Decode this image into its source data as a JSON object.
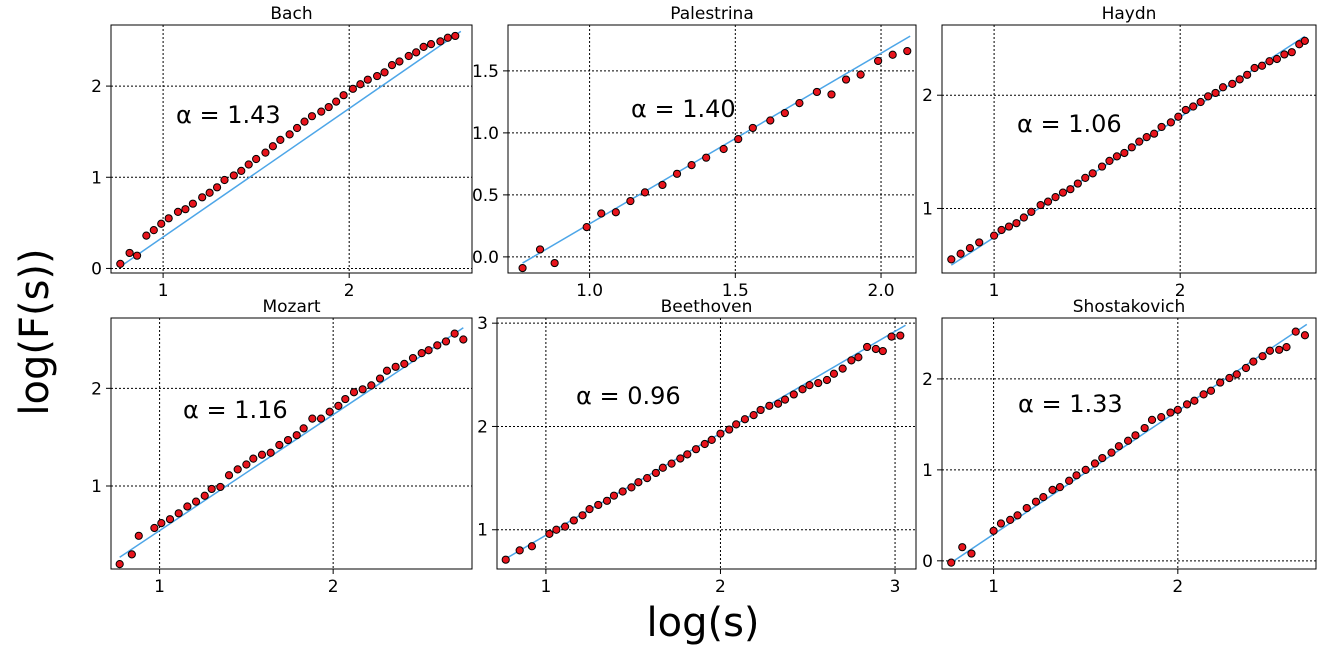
{
  "figure": {
    "xlabel": "log(s)",
    "ylabel": "log(F(s))"
  },
  "colors": {
    "marker_fill": "#e8141c",
    "marker_edge": "#000000",
    "fit_line": "#4da6e8",
    "grid": "#000000"
  },
  "chart_data": [
    {
      "type": "scatter",
      "title": "Bach",
      "annotation": "α = 1.43",
      "xlim": [
        0.72,
        2.66
      ],
      "ylim": [
        -0.05,
        2.67
      ],
      "xticks": [
        1,
        2
      ],
      "yticks": [
        0,
        1,
        2
      ],
      "xtick_labels": [
        "1",
        "2"
      ],
      "ytick_labels": [
        "0",
        "1",
        "2"
      ],
      "grid": true,
      "fit": {
        "x": [
          0.77,
          2.6
        ],
        "y": [
          0.02,
          2.6
        ]
      },
      "x": [
        0.77,
        0.82,
        0.86,
        0.91,
        0.95,
        0.99,
        1.03,
        1.08,
        1.12,
        1.16,
        1.21,
        1.25,
        1.29,
        1.33,
        1.38,
        1.42,
        1.46,
        1.5,
        1.55,
        1.59,
        1.63,
        1.68,
        1.72,
        1.76,
        1.8,
        1.85,
        1.89,
        1.93,
        1.97,
        2.02,
        2.06,
        2.1,
        2.15,
        2.19,
        2.23,
        2.27,
        2.32,
        2.36,
        2.4,
        2.44,
        2.49,
        2.53,
        2.57
      ],
      "y": [
        0.05,
        0.17,
        0.14,
        0.36,
        0.42,
        0.49,
        0.55,
        0.62,
        0.65,
        0.71,
        0.78,
        0.83,
        0.89,
        0.97,
        1.02,
        1.07,
        1.14,
        1.2,
        1.27,
        1.34,
        1.41,
        1.47,
        1.54,
        1.61,
        1.67,
        1.72,
        1.77,
        1.83,
        1.9,
        1.97,
        2.02,
        2.07,
        2.11,
        2.15,
        2.23,
        2.27,
        2.33,
        2.37,
        2.43,
        2.46,
        2.49,
        2.53,
        2.55
      ]
    },
    {
      "type": "scatter",
      "title": "Palestrina",
      "annotation": "α = 1.40",
      "xlim": [
        0.72,
        2.12
      ],
      "ylim": [
        -0.13,
        1.87
      ],
      "xticks": [
        1.0,
        1.5,
        2.0
      ],
      "yticks": [
        0.0,
        0.5,
        1.0,
        1.5
      ],
      "xtick_labels": [
        "1.0",
        "1.5",
        "2.0"
      ],
      "ytick_labels": [
        "0.0",
        "0.5",
        "1.0",
        "1.5"
      ],
      "grid": true,
      "fit": {
        "x": [
          0.77,
          2.1
        ],
        "y": [
          -0.05,
          1.78
        ]
      },
      "x": [
        0.77,
        0.83,
        0.88,
        0.99,
        1.04,
        1.09,
        1.14,
        1.19,
        1.25,
        1.3,
        1.35,
        1.4,
        1.46,
        1.51,
        1.56,
        1.62,
        1.67,
        1.72,
        1.78,
        1.83,
        1.88,
        1.93,
        1.99,
        2.04,
        2.09
      ],
      "y": [
        -0.09,
        0.06,
        -0.05,
        0.24,
        0.35,
        0.36,
        0.45,
        0.52,
        0.58,
        0.67,
        0.74,
        0.8,
        0.87,
        0.95,
        1.04,
        1.1,
        1.16,
        1.24,
        1.33,
        1.31,
        1.43,
        1.47,
        1.58,
        1.63,
        1.66
      ]
    },
    {
      "type": "scatter",
      "title": "Haydn",
      "annotation": "α = 1.06",
      "xlim": [
        0.72,
        2.73
      ],
      "ylim": [
        0.43,
        2.62
      ],
      "xticks": [
        1,
        2
      ],
      "yticks": [
        1,
        2
      ],
      "xtick_labels": [
        "1",
        "2"
      ],
      "ytick_labels": [
        "1",
        "2"
      ],
      "grid": true,
      "fit": {
        "x": [
          0.77,
          2.67
        ],
        "y": [
          0.5,
          2.52
        ]
      },
      "x": [
        0.77,
        0.82,
        0.87,
        0.92,
        1.0,
        1.04,
        1.08,
        1.12,
        1.16,
        1.2,
        1.25,
        1.29,
        1.33,
        1.37,
        1.41,
        1.45,
        1.49,
        1.53,
        1.58,
        1.62,
        1.66,
        1.7,
        1.74,
        1.78,
        1.82,
        1.86,
        1.9,
        1.95,
        1.99,
        2.03,
        2.07,
        2.11,
        2.15,
        2.19,
        2.23,
        2.28,
        2.32,
        2.36,
        2.4,
        2.44,
        2.48,
        2.52,
        2.56,
        2.6,
        2.64,
        2.67
      ],
      "y": [
        0.55,
        0.6,
        0.65,
        0.7,
        0.76,
        0.81,
        0.84,
        0.87,
        0.92,
        0.97,
        1.03,
        1.06,
        1.1,
        1.14,
        1.17,
        1.22,
        1.27,
        1.31,
        1.37,
        1.42,
        1.46,
        1.49,
        1.54,
        1.59,
        1.63,
        1.66,
        1.72,
        1.76,
        1.81,
        1.87,
        1.9,
        1.94,
        1.99,
        2.02,
        2.07,
        2.1,
        2.14,
        2.18,
        2.24,
        2.26,
        2.3,
        2.32,
        2.36,
        2.38,
        2.45,
        2.48
      ]
    },
    {
      "type": "scatter",
      "title": "Mozart",
      "annotation": "α = 1.16",
      "xlim": [
        0.72,
        2.8
      ],
      "ylim": [
        0.15,
        2.72
      ],
      "xticks": [
        1,
        2
      ],
      "yticks": [
        1,
        2
      ],
      "xtick_labels": [
        "1",
        "2"
      ],
      "ytick_labels": [
        "1",
        "2"
      ],
      "grid": true,
      "fit": {
        "x": [
          0.77,
          2.75
        ],
        "y": [
          0.27,
          2.62
        ]
      },
      "x": [
        0.77,
        0.84,
        0.88,
        0.97,
        1.01,
        1.06,
        1.11,
        1.16,
        1.21,
        1.26,
        1.3,
        1.35,
        1.4,
        1.45,
        1.5,
        1.54,
        1.59,
        1.64,
        1.69,
        1.74,
        1.79,
        1.83,
        1.88,
        1.93,
        1.98,
        2.03,
        2.07,
        2.12,
        2.17,
        2.22,
        2.27,
        2.31,
        2.36,
        2.41,
        2.46,
        2.51,
        2.55,
        2.6,
        2.65,
        2.7,
        2.75
      ],
      "y": [
        0.2,
        0.3,
        0.49,
        0.57,
        0.62,
        0.66,
        0.72,
        0.79,
        0.84,
        0.9,
        0.97,
        0.99,
        1.11,
        1.17,
        1.22,
        1.28,
        1.32,
        1.34,
        1.42,
        1.47,
        1.52,
        1.59,
        1.69,
        1.69,
        1.76,
        1.82,
        1.89,
        1.96,
        1.99,
        2.03,
        2.1,
        2.18,
        2.22,
        2.25,
        2.31,
        2.36,
        2.39,
        2.44,
        2.48,
        2.56,
        2.5
      ]
    },
    {
      "type": "scatter",
      "title": "Beethoven",
      "annotation": "α = 0.96",
      "xlim": [
        0.72,
        3.12
      ],
      "ylim": [
        0.62,
        3.05
      ],
      "xticks": [
        1,
        2,
        3
      ],
      "yticks": [
        1,
        2,
        3
      ],
      "xtick_labels": [
        "1",
        "2",
        "3"
      ],
      "ytick_labels": [
        "1",
        "2",
        "3"
      ],
      "grid": true,
      "fit": {
        "x": [
          0.77,
          3.06
        ],
        "y": [
          0.72,
          2.98
        ]
      },
      "x": [
        0.77,
        0.85,
        0.92,
        1.02,
        1.06,
        1.11,
        1.16,
        1.21,
        1.25,
        1.3,
        1.35,
        1.39,
        1.44,
        1.49,
        1.53,
        1.58,
        1.63,
        1.67,
        1.72,
        1.77,
        1.81,
        1.86,
        1.91,
        1.95,
        2.0,
        2.05,
        2.09,
        2.14,
        2.19,
        2.23,
        2.28,
        2.33,
        2.37,
        2.42,
        2.47,
        2.51,
        2.56,
        2.61,
        2.65,
        2.7,
        2.75,
        2.79,
        2.84,
        2.89,
        2.93,
        2.98,
        3.03
      ],
      "y": [
        0.71,
        0.8,
        0.84,
        0.96,
        1.0,
        1.03,
        1.09,
        1.14,
        1.2,
        1.24,
        1.28,
        1.33,
        1.37,
        1.41,
        1.46,
        1.5,
        1.55,
        1.6,
        1.64,
        1.69,
        1.73,
        1.78,
        1.83,
        1.87,
        1.93,
        1.97,
        2.02,
        2.07,
        2.11,
        2.16,
        2.2,
        2.22,
        2.26,
        2.31,
        2.36,
        2.4,
        2.42,
        2.45,
        2.51,
        2.56,
        2.64,
        2.67,
        2.77,
        2.75,
        2.73,
        2.87,
        2.88
      ]
    },
    {
      "type": "scatter",
      "title": "Shostakovich",
      "annotation": "α = 1.33",
      "xlim": [
        0.72,
        2.75
      ],
      "ylim": [
        -0.09,
        2.67
      ],
      "xticks": [
        1,
        2
      ],
      "yticks": [
        0,
        1,
        2
      ],
      "xtick_labels": [
        "1",
        "2"
      ],
      "ytick_labels": [
        "0",
        "1",
        "2"
      ],
      "grid": true,
      "fit": {
        "x": [
          0.77,
          2.7
        ],
        "y": [
          -0.02,
          2.6
        ]
      },
      "x": [
        0.77,
        0.83,
        0.88,
        1.0,
        1.04,
        1.09,
        1.13,
        1.18,
        1.23,
        1.27,
        1.32,
        1.36,
        1.41,
        1.45,
        1.5,
        1.55,
        1.59,
        1.64,
        1.68,
        1.73,
        1.77,
        1.82,
        1.86,
        1.91,
        1.96,
        2.0,
        2.05,
        2.09,
        2.14,
        2.18,
        2.23,
        2.28,
        2.32,
        2.37,
        2.41,
        2.46,
        2.5,
        2.55,
        2.59,
        2.64,
        2.69
      ],
      "y": [
        -0.02,
        0.15,
        0.08,
        0.33,
        0.41,
        0.45,
        0.5,
        0.58,
        0.65,
        0.7,
        0.78,
        0.81,
        0.88,
        0.94,
        1.0,
        1.07,
        1.13,
        1.19,
        1.26,
        1.32,
        1.38,
        1.46,
        1.55,
        1.58,
        1.63,
        1.66,
        1.72,
        1.76,
        1.83,
        1.87,
        1.96,
        2.01,
        2.05,
        2.12,
        2.19,
        2.25,
        2.31,
        2.32,
        2.35,
        2.52,
        2.48
      ]
    }
  ]
}
